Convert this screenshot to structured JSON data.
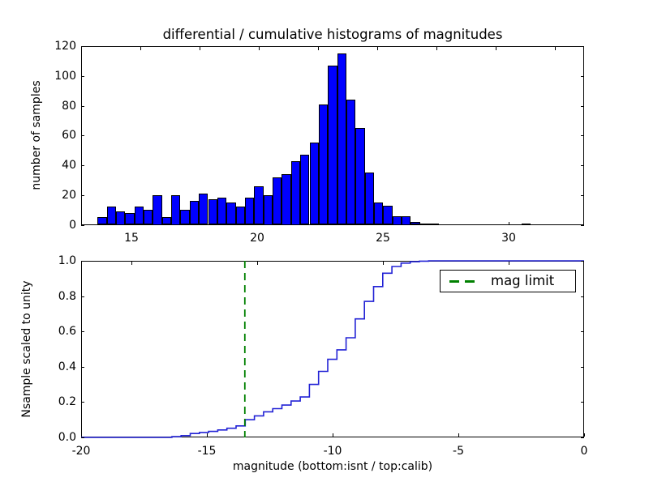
{
  "figure": {
    "background": "#ffffff",
    "colors": {
      "bar_fill": "#0000ff",
      "bar_edge": "#000000",
      "step_line": "#2222d5",
      "mag_limit_line": "#008000",
      "axis": "#000000",
      "text": "#000000"
    }
  },
  "chart_data": [
    {
      "type": "bar",
      "subplot": "top",
      "title": "differential / cumulative histograms of magnitudes",
      "ylabel": "number of samples",
      "xlim": [
        13,
        33
      ],
      "ylim": [
        0,
        120
      ],
      "grid": false,
      "xticks": {
        "values": [
          15,
          20,
          25,
          30
        ],
        "labels": [
          "15",
          "20",
          "25",
          "30"
        ]
      },
      "yticks": {
        "values": [
          0,
          20,
          40,
          60,
          80,
          100,
          120
        ],
        "labels": [
          "0",
          "20",
          "40",
          "60",
          "80",
          "100",
          "120"
        ]
      },
      "bins": {
        "start": 13.65,
        "width": 0.3665
      },
      "counts": [
        5,
        12,
        9,
        8,
        12,
        10,
        20,
        5,
        20,
        10,
        16,
        21,
        17,
        18,
        15,
        12,
        18,
        26,
        20,
        32,
        34,
        43,
        47,
        55,
        81,
        107,
        115,
        84,
        65,
        35,
        15,
        13,
        6,
        6,
        2,
        1,
        1,
        0,
        0,
        0,
        0,
        0,
        0,
        0,
        0,
        0,
        1
      ]
    },
    {
      "type": "line",
      "subplot": "bottom",
      "ylabel": "Nsample scaled to unity",
      "xlabel": "magnitude (bottom:isnt / top:calib)",
      "xlim": [
        -20,
        0
      ],
      "ylim": [
        0,
        1
      ],
      "grid": false,
      "xticks": {
        "values": [
          -20,
          -15,
          -10,
          -5,
          0
        ],
        "labels": [
          "-20",
          "-15",
          "-10",
          "-5",
          "0"
        ]
      },
      "yticks": {
        "values": [
          0,
          0.2,
          0.4,
          0.6,
          0.8,
          1
        ],
        "labels": [
          "0.0",
          "0.2",
          "0.4",
          "0.6",
          "0.8",
          "1.0"
        ]
      },
      "top_axis_ticks_calib": {
        "values": [
          15,
          20,
          25,
          30
        ],
        "zero_point": 33
      },
      "bins": {
        "start": -16.39,
        "width": 0.3645
      },
      "cumulative": [
        0.004,
        0.01,
        0.022,
        0.028,
        0.034,
        0.042,
        0.052,
        0.065,
        0.1,
        0.122,
        0.145,
        0.163,
        0.183,
        0.206,
        0.229,
        0.3,
        0.374,
        0.442,
        0.496,
        0.564,
        0.671,
        0.77,
        0.854,
        0.93,
        0.968,
        0.987,
        0.995,
        0.998,
        1.0
      ],
      "mag_limit": -13.49,
      "legend": {
        "label": "mag limit",
        "position": "upper right",
        "line_style": "dashed"
      }
    }
  ]
}
